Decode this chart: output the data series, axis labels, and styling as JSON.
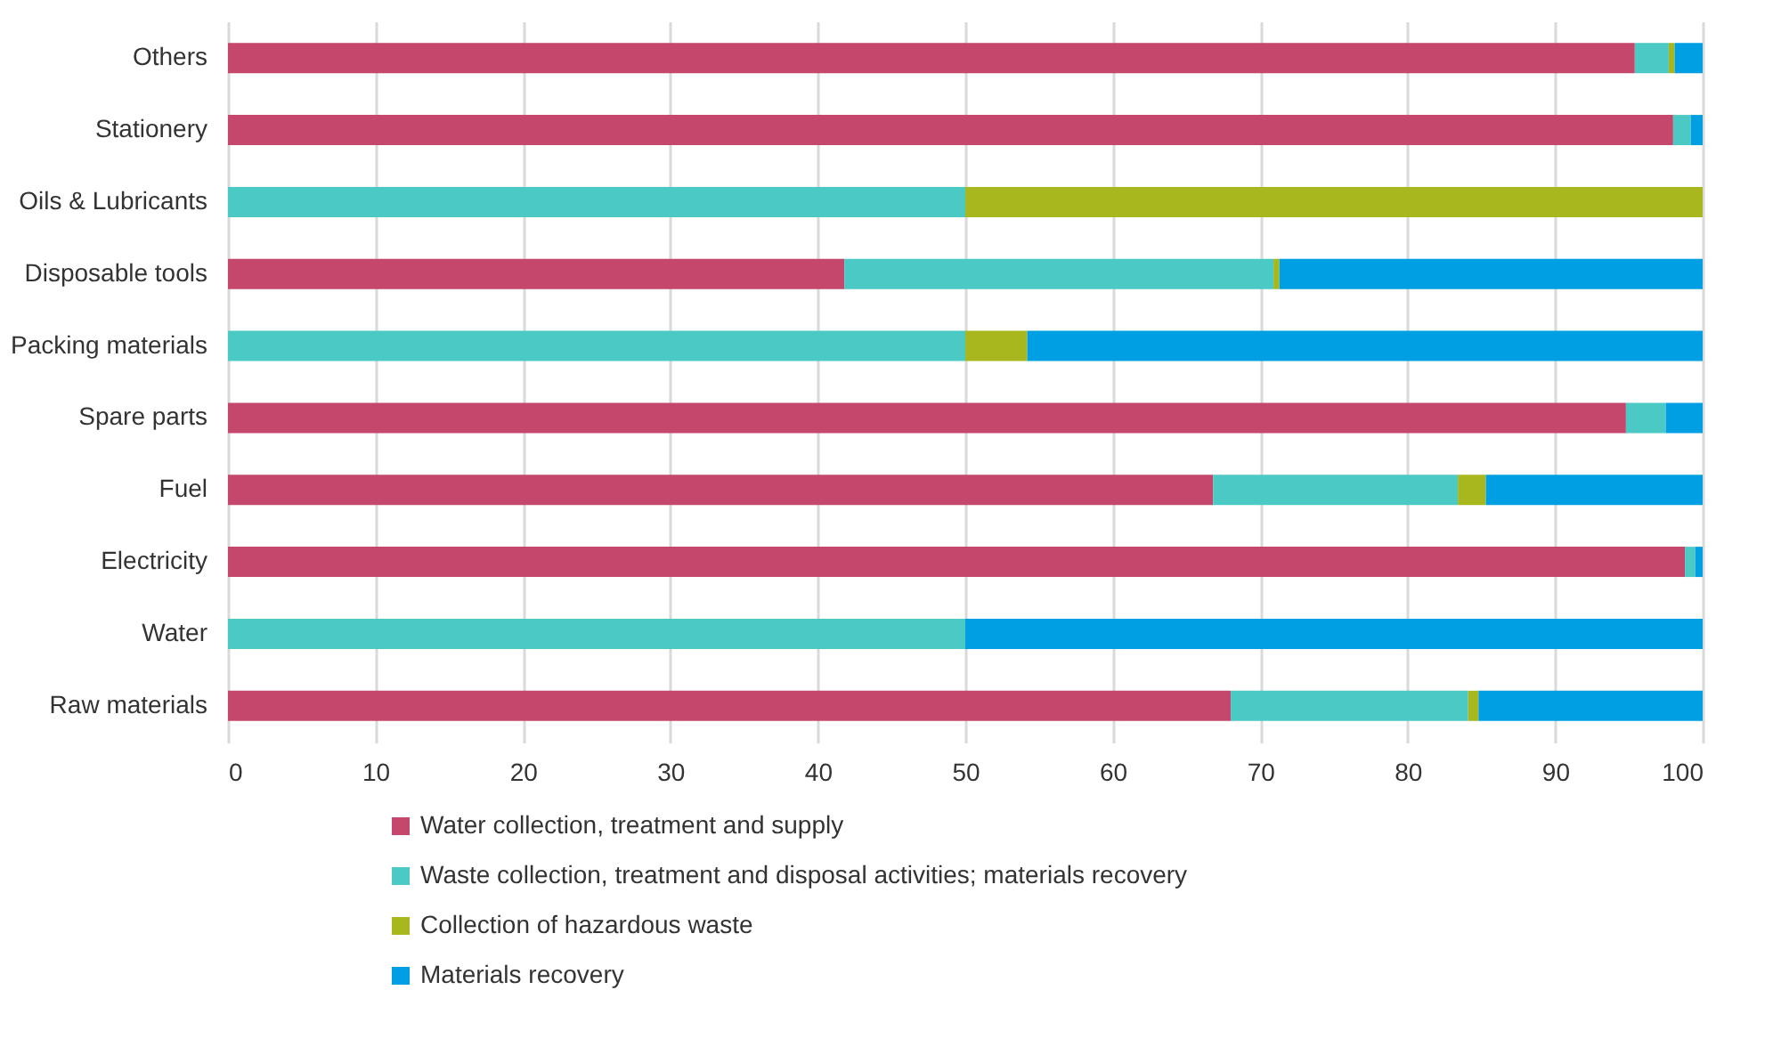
{
  "chart_data": {
    "type": "bar",
    "orientation": "horizontal",
    "stacked": true,
    "categories": [
      "Others",
      "Stationery",
      "Oils & Lubricants",
      "Disposable tools",
      "Packing materials",
      "Spare parts",
      "Fuel",
      "Electricity",
      "Water",
      "Raw materials"
    ],
    "series": [
      {
        "name": "Water collection, treatment and supply",
        "color": "#c5476b",
        "values": [
          95.4,
          98.0,
          0,
          41.8,
          0,
          94.8,
          66.8,
          98.8,
          0,
          68.0
        ]
      },
      {
        "name": "Waste collection, treatment and disposal activities; materials recovery",
        "color": "#4bc9c4",
        "values": [
          2.3,
          1.2,
          50,
          29.1,
          50,
          2.7,
          16.6,
          0.7,
          50,
          16.1
        ]
      },
      {
        "name": "Collection of hazardous waste",
        "color": "#a9b71e",
        "values": [
          0.4,
          0,
          50,
          0.4,
          4.2,
          0,
          1.9,
          0,
          0,
          0.7
        ]
      },
      {
        "name": "Materials recovery",
        "color": "#009fe3",
        "values": [
          1.9,
          0.8,
          0,
          28.7,
          45.8,
          2.5,
          14.7,
          0.5,
          50,
          15.2
        ]
      }
    ],
    "xlim": [
      0,
      100
    ],
    "xticks": [
      0,
      10,
      20,
      30,
      40,
      50,
      60,
      70,
      80,
      90,
      100
    ],
    "grid": "x",
    "legend": "bottom"
  }
}
